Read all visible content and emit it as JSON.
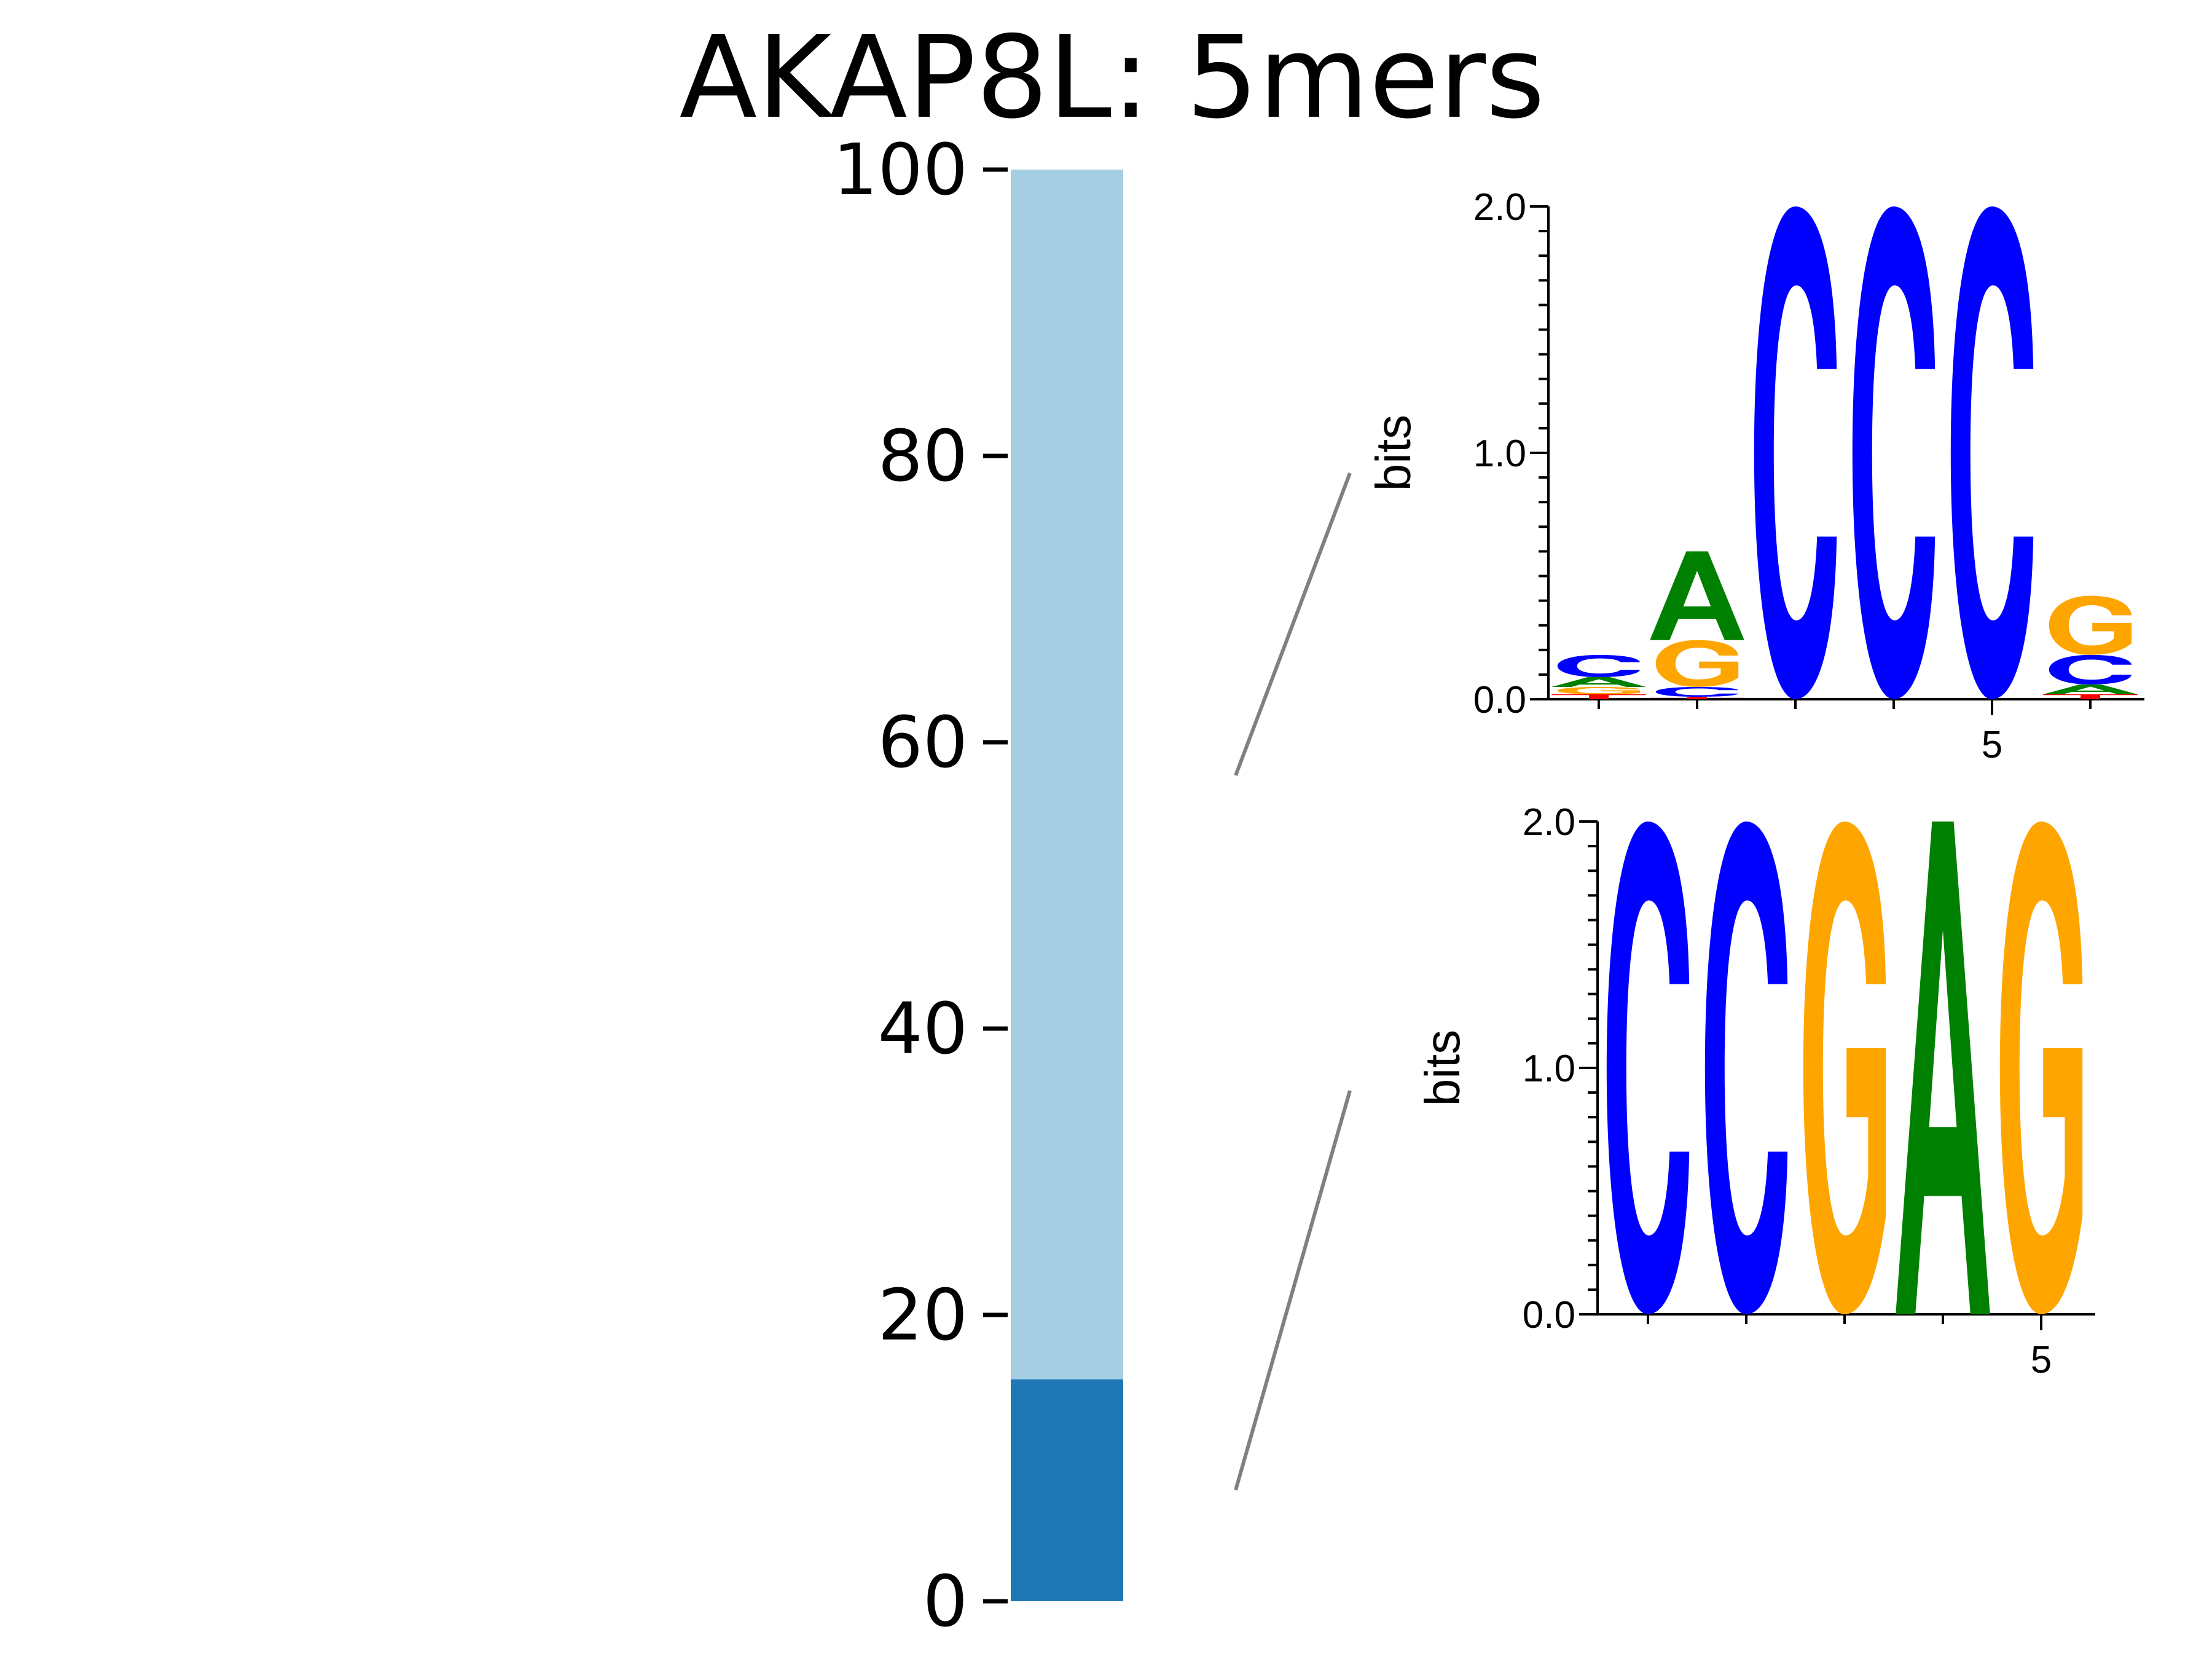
{
  "title": "AKAP8L: 5mers",
  "colors": {
    "bar_top": "#a6cee3",
    "bar_bottom": "#1f78b4",
    "A": "#008000",
    "C": "#0000ff",
    "G": "#ffa500",
    "T": "#ff0000",
    "connector": "#808080"
  },
  "chart_data": [
    {
      "type": "bar",
      "stacked": true,
      "ylim": [
        0,
        100
      ],
      "yticks": [
        "0",
        "20",
        "40",
        "60",
        "80",
        "100"
      ],
      "segments": [
        {
          "from": 0,
          "to": 15.5
        },
        {
          "from": 15.5,
          "to": 100
        }
      ]
    },
    {
      "type": "sequence-logo",
      "ylabel": "bits",
      "ylim": [
        0,
        2.0
      ],
      "yticks": [
        "0.0",
        "1.0",
        "2.0"
      ],
      "xticks": [
        {
          "pos": 5,
          "label": "5"
        }
      ],
      "positions": [
        [
          {
            "letter": "T",
            "bits": 0.02
          },
          {
            "letter": "G",
            "bits": 0.03
          },
          {
            "letter": "A",
            "bits": 0.04
          },
          {
            "letter": "C",
            "bits": 0.09
          }
        ],
        [
          {
            "letter": "T",
            "bits": 0.01
          },
          {
            "letter": "C",
            "bits": 0.04
          },
          {
            "letter": "G",
            "bits": 0.19
          },
          {
            "letter": "A",
            "bits": 0.36
          }
        ],
        [
          {
            "letter": "C",
            "bits": 2.0
          }
        ],
        [
          {
            "letter": "C",
            "bits": 2.0
          }
        ],
        [
          {
            "letter": "C",
            "bits": 2.0
          }
        ],
        [
          {
            "letter": "T",
            "bits": 0.02
          },
          {
            "letter": "A",
            "bits": 0.04
          },
          {
            "letter": "C",
            "bits": 0.12
          },
          {
            "letter": "G",
            "bits": 0.24
          }
        ]
      ]
    },
    {
      "type": "sequence-logo",
      "ylabel": "bits",
      "ylim": [
        0,
        2.0
      ],
      "yticks": [
        "0.0",
        "1.0",
        "2.0"
      ],
      "xticks": [
        {
          "pos": 5,
          "label": "5"
        }
      ],
      "positions": [
        [
          {
            "letter": "C",
            "bits": 2.0
          }
        ],
        [
          {
            "letter": "C",
            "bits": 2.0
          }
        ],
        [
          {
            "letter": "G",
            "bits": 2.0
          }
        ],
        [
          {
            "letter": "A",
            "bits": 2.0
          }
        ],
        [
          {
            "letter": "G",
            "bits": 2.0
          }
        ]
      ]
    }
  ]
}
